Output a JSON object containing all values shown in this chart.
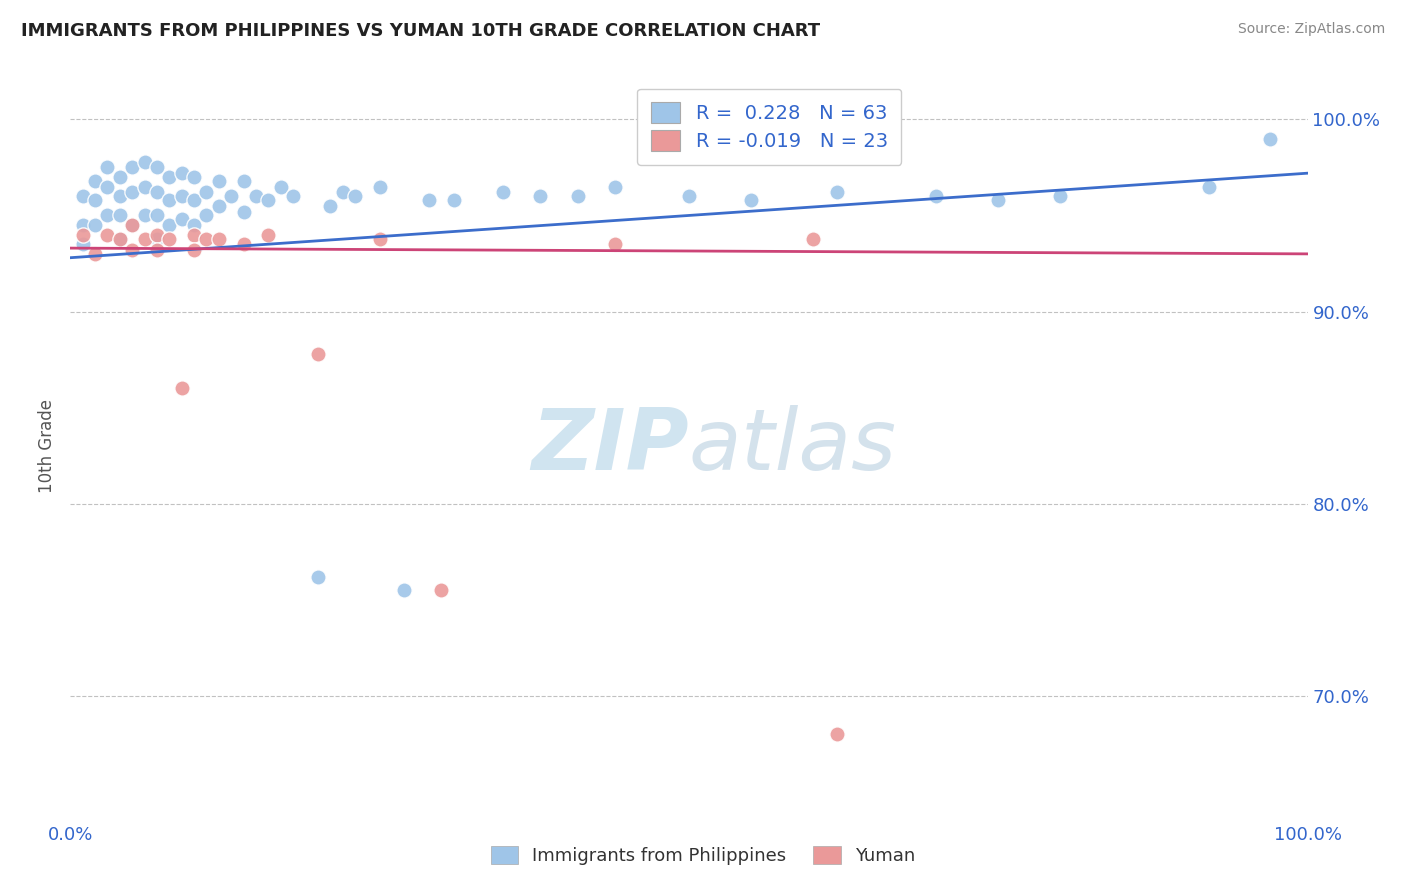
{
  "title": "IMMIGRANTS FROM PHILIPPINES VS YUMAN 10TH GRADE CORRELATION CHART",
  "source": "Source: ZipAtlas.com",
  "ylabel": "10th Grade",
  "xmin": 0.0,
  "xmax": 1.0,
  "ymin": 0.635,
  "ymax": 1.025,
  "yticks": [
    0.7,
    0.8,
    0.9,
    1.0
  ],
  "ytick_labels": [
    "70.0%",
    "80.0%",
    "90.0%",
    "100.0%"
  ],
  "blue_R": 0.228,
  "blue_N": 63,
  "pink_R": -0.019,
  "pink_N": 23,
  "legend_label_blue": "Immigrants from Philippines",
  "legend_label_pink": "Yuman",
  "blue_color": "#9fc5e8",
  "pink_color": "#ea9999",
  "blue_line_color": "#3c6dcb",
  "pink_line_color": "#cc4477",
  "background_color": "#ffffff",
  "watermark_color": "#d0e4f0",
  "title_color": "#222222",
  "source_color": "#888888",
  "ylabel_color": "#555555",
  "tick_color": "#3366cc",
  "grid_color": "#bbbbbb",
  "blue_line_y0": 0.928,
  "blue_line_y1": 0.972,
  "pink_line_y0": 0.933,
  "pink_line_y1": 0.93,
  "blue_x": [
    0.01,
    0.01,
    0.01,
    0.02,
    0.02,
    0.02,
    0.03,
    0.03,
    0.03,
    0.04,
    0.04,
    0.04,
    0.04,
    0.05,
    0.05,
    0.05,
    0.06,
    0.06,
    0.06,
    0.07,
    0.07,
    0.07,
    0.07,
    0.08,
    0.08,
    0.08,
    0.09,
    0.09,
    0.09,
    0.1,
    0.1,
    0.1,
    0.11,
    0.11,
    0.12,
    0.12,
    0.13,
    0.14,
    0.14,
    0.15,
    0.16,
    0.17,
    0.18,
    0.2,
    0.21,
    0.22,
    0.23,
    0.25,
    0.27,
    0.29,
    0.31,
    0.35,
    0.38,
    0.41,
    0.44,
    0.5,
    0.55,
    0.62,
    0.7,
    0.75,
    0.8,
    0.92,
    0.97
  ],
  "blue_y": [
    0.96,
    0.945,
    0.935,
    0.968,
    0.958,
    0.945,
    0.975,
    0.965,
    0.95,
    0.97,
    0.96,
    0.95,
    0.938,
    0.975,
    0.962,
    0.945,
    0.978,
    0.965,
    0.95,
    0.975,
    0.962,
    0.95,
    0.938,
    0.97,
    0.958,
    0.945,
    0.972,
    0.96,
    0.948,
    0.97,
    0.958,
    0.945,
    0.962,
    0.95,
    0.968,
    0.955,
    0.96,
    0.968,
    0.952,
    0.96,
    0.958,
    0.965,
    0.96,
    0.762,
    0.955,
    0.962,
    0.96,
    0.965,
    0.755,
    0.958,
    0.958,
    0.962,
    0.96,
    0.96,
    0.965,
    0.96,
    0.958,
    0.962,
    0.96,
    0.958,
    0.96,
    0.965,
    0.99
  ],
  "pink_x": [
    0.01,
    0.02,
    0.03,
    0.04,
    0.05,
    0.05,
    0.06,
    0.07,
    0.07,
    0.08,
    0.09,
    0.1,
    0.1,
    0.11,
    0.12,
    0.14,
    0.16,
    0.2,
    0.25,
    0.3,
    0.44,
    0.6,
    0.62
  ],
  "pink_y": [
    0.94,
    0.93,
    0.94,
    0.938,
    0.945,
    0.932,
    0.938,
    0.94,
    0.932,
    0.938,
    0.86,
    0.94,
    0.932,
    0.938,
    0.938,
    0.935,
    0.94,
    0.878,
    0.938,
    0.755,
    0.935,
    0.938,
    0.68
  ]
}
